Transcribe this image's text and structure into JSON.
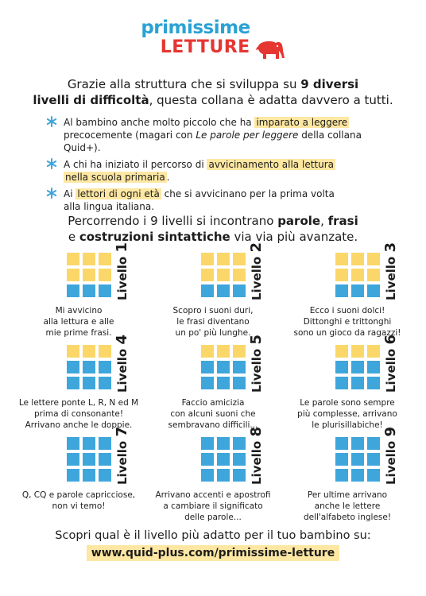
{
  "logo": {
    "line1": "primissime",
    "line2": "LETTURE"
  },
  "intro": {
    "part1": "Grazie alla struttura che si sviluppa su ",
    "bold1": "9 diversi",
    "bold2": "livelli di difficoltà",
    "part2": ", questa collana è adatta davvero a tutti."
  },
  "bullets": [
    {
      "a": "Al bambino anche molto piccolo che ha ",
      "hl": "imparato a leggere",
      "b": "precocemente (magari con ",
      "i": "Le parole per leggere",
      "c": " della collana Quid+)."
    },
    {
      "a": "A chi ha iniziato il percorso di ",
      "hl": "avvicinamento alla lettura",
      "hl2": "nella scuola primaria",
      "c": "."
    },
    {
      "a": "Ai ",
      "hl": "lettori di ogni età",
      "b": " che si avvicinano per la prima volta",
      "c": "alla lingua italiana."
    }
  ],
  "mid": {
    "p1": "Percorrendo i 9 livelli si incontrano ",
    "b1": "parole",
    "p2": ", ",
    "b2": "frasi",
    "p3": "e ",
    "b3": "costruzioni sintattiche",
    "p4": " via via più avanzate."
  },
  "levels": [
    {
      "label": "Livello",
      "num": "1",
      "yellow": 6,
      "lines": [
        "Mi avvicino",
        "alla lettura e alle",
        "mie prime frasi."
      ]
    },
    {
      "label": "Livello",
      "num": "2",
      "yellow": 6,
      "lines": [
        "Scopro i suoni duri,",
        "le frasi diventano",
        "un po' più lunghe."
      ]
    },
    {
      "label": "Livello",
      "num": "3",
      "yellow": 6,
      "lines": [
        "Ecco i suoni dolci!",
        "Dittonghi e trittonghi",
        "sono un gioco da ragazzi!"
      ]
    },
    {
      "label": "Livello",
      "num": "4",
      "yellow": 3,
      "lines": [
        "Le lettere ponte L, R, N ed M",
        "prima di consonante!",
        "Arrivano anche le doppie."
      ]
    },
    {
      "label": "Livello",
      "num": "5",
      "yellow": 3,
      "lines": [
        "Faccio amicizia",
        "con alcuni suoni che",
        "sembravano difficili..."
      ]
    },
    {
      "label": "Livello",
      "num": "6",
      "yellow": 3,
      "lines": [
        "Le parole sono sempre",
        "più complesse, arrivano",
        "le plurisillabiche!"
      ]
    },
    {
      "label": "Livello",
      "num": "7",
      "yellow": 0,
      "lines": [
        "Q, CQ e parole capricciose,",
        "non vi temo!"
      ]
    },
    {
      "label": "Livello",
      "num": "8",
      "yellow": 0,
      "lines": [
        "Arrivano accenti e apostrofi",
        "a cambiare il significato",
        "delle parole..."
      ]
    },
    {
      "label": "Livello",
      "num": "9",
      "yellow": 0,
      "lines": [
        "Per ultime arrivano",
        "anche le lettere",
        "dell'alfabeto inglese!"
      ]
    }
  ],
  "footer": {
    "text": "Scopri qual è il livello più adatto per il tuo bambino su:",
    "url": "www.quid-plus.com/primissime-letture"
  },
  "colors": {
    "blue": "#3fa6dc",
    "yellow": "#fbd76a",
    "red": "#e63632",
    "highlight": "#fde7a2"
  }
}
